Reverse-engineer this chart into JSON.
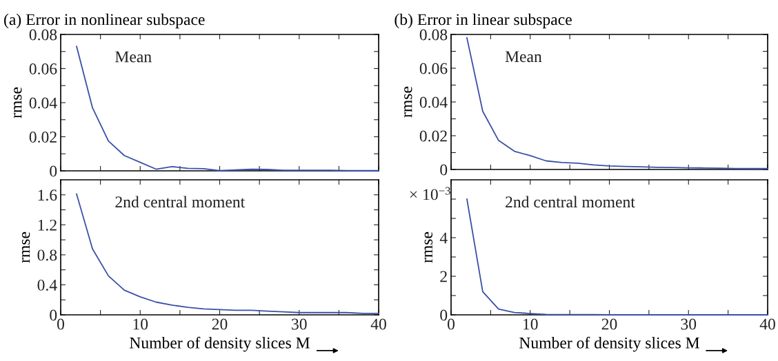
{
  "chart_data": [
    {
      "type": "line",
      "title": "(a) Error in nonlinear subspace",
      "ylabel": "rmse",
      "annotations": [
        "Mean"
      ],
      "tick_labels": "y",
      "x": [
        2,
        4,
        6,
        8,
        10,
        12,
        14,
        16,
        18,
        20,
        22,
        24,
        26,
        28,
        30,
        32,
        34,
        36,
        38,
        40
      ],
      "series": [
        {
          "color": "#3a50a8",
          "values": [
            0.073,
            0.037,
            0.0175,
            0.009,
            0.005,
            0.001,
            0.0025,
            0.0015,
            0.0013,
            0.0001,
            0.0005,
            0.0009,
            0.0008,
            0.0003,
            0.0003,
            0.0003,
            0.0003,
            0.0001,
            0.0001,
            0.0001
          ]
        }
      ],
      "xlim": [
        0,
        40
      ],
      "xticks": [
        0,
        {
          "value": 5,
          "label": null
        },
        10,
        {
          "value": 15,
          "label": null
        },
        20,
        {
          "value": 25,
          "label": null
        },
        30,
        {
          "value": 35,
          "label": null
        },
        40
      ],
      "ylim": [
        0,
        0.08
      ],
      "yticks": [
        0,
        {
          "value": 0.01,
          "label": null
        },
        0.02,
        {
          "value": 0.03,
          "label": null
        },
        0.04,
        {
          "value": 0.05,
          "label": null
        },
        0.06,
        {
          "value": 0.07,
          "label": null
        },
        0.08
      ],
      "grid": false
    },
    {
      "type": "line",
      "ylabel": "rmse",
      "xlabel": "Number of density slices M",
      "annotations": [
        "2nd central moment"
      ],
      "x": [
        2,
        4,
        6,
        8,
        10,
        12,
        14,
        16,
        18,
        20,
        22,
        24,
        26,
        28,
        30,
        32,
        34,
        36,
        38,
        40
      ],
      "series": [
        {
          "color": "#3a50a8",
          "values": [
            1.61,
            0.88,
            0.52,
            0.33,
            0.24,
            0.17,
            0.13,
            0.1,
            0.08,
            0.07,
            0.06,
            0.06,
            0.05,
            0.04,
            0.03,
            0.03,
            0.03,
            0.03,
            0.02,
            0.02
          ]
        }
      ],
      "xlim": [
        0,
        40
      ],
      "xticks": [
        0,
        {
          "value": 5,
          "label": null
        },
        10,
        {
          "value": 15,
          "label": null
        },
        20,
        {
          "value": 25,
          "label": null
        },
        30,
        {
          "value": 35,
          "label": null
        },
        40
      ],
      "ylim": [
        0,
        1.8
      ],
      "yticks": [
        0,
        {
          "value": 0.2,
          "label": null
        },
        0.4,
        {
          "value": 0.6,
          "label": null
        },
        0.8,
        {
          "value": 1.0,
          "label": null
        },
        1.2,
        {
          "value": 1.4,
          "label": null
        },
        1.6
      ],
      "grid": false
    },
    {
      "type": "line",
      "title": "(b) Error in linear subspace",
      "ylabel": "rmse",
      "annotations": [
        "Mean"
      ],
      "tick_labels": "y",
      "x": [
        2,
        4,
        6,
        8,
        10,
        12,
        14,
        16,
        18,
        20,
        22,
        24,
        26,
        28,
        30,
        32,
        34,
        36,
        38,
        40
      ],
      "series": [
        {
          "color": "#3a50a8",
          "values": [
            0.078,
            0.0345,
            0.0172,
            0.0108,
            0.0082,
            0.0051,
            0.0041,
            0.0037,
            0.0027,
            0.0021,
            0.0018,
            0.0016,
            0.0013,
            0.0012,
            0.001,
            0.0009,
            0.0008,
            0.0006,
            0.0005,
            0.0005
          ]
        }
      ],
      "xlim": [
        0,
        40
      ],
      "xticks": [
        0,
        {
          "value": 5,
          "label": null
        },
        10,
        {
          "value": 15,
          "label": null
        },
        20,
        {
          "value": 25,
          "label": null
        },
        30,
        {
          "value": 35,
          "label": null
        },
        40
      ],
      "ylim": [
        0,
        0.08
      ],
      "yticks": [
        0,
        {
          "value": 0.01,
          "label": null
        },
        0.02,
        {
          "value": 0.03,
          "label": null
        },
        0.04,
        {
          "value": 0.05,
          "label": null
        },
        0.06,
        {
          "value": 0.07,
          "label": null
        },
        0.08
      ],
      "grid": false
    },
    {
      "type": "line",
      "ylabel": "rmse",
      "xlabel": "Number of density slices M",
      "annotations": [
        "2nd central moment",
        "× 10$^{−3}$"
      ],
      "x": [
        2,
        4,
        6,
        8,
        10,
        12,
        14,
        16,
        18,
        20,
        22,
        24,
        26,
        28,
        30,
        32,
        34,
        36,
        38,
        40
      ],
      "series": [
        {
          "color": "#3a50a8",
          "values": [
            6.0,
            1.2,
            0.3,
            0.12,
            0.07,
            0.02,
            0.01,
            0.01,
            0.01,
            0,
            0,
            0,
            0,
            0,
            0,
            0,
            0,
            0,
            0,
            0
          ]
        }
      ],
      "xlim": [
        0,
        40
      ],
      "xticks": [
        0,
        {
          "value": 5,
          "label": null
        },
        10,
        {
          "value": 15,
          "label": null
        },
        20,
        {
          "value": 25,
          "label": null
        },
        30,
        {
          "value": 35,
          "label": null
        },
        40
      ],
      "ylim": [
        0,
        7
      ],
      "yticks": [
        0,
        {
          "value": 1,
          "label": null
        },
        2,
        {
          "value": 3,
          "label": null
        },
        4,
        {
          "value": 5,
          "label": null
        },
        {
          "value": 6,
          "label": null
        }
      ],
      "grid": false
    }
  ]
}
